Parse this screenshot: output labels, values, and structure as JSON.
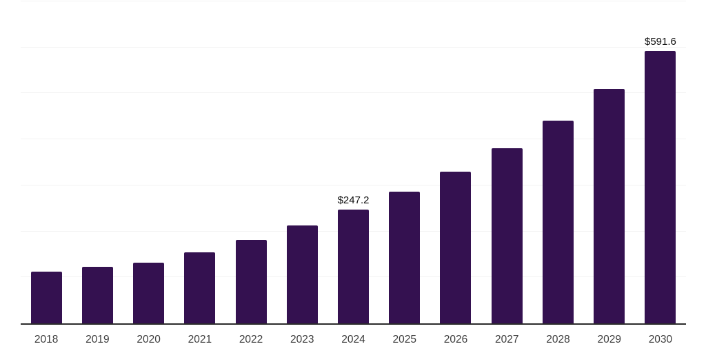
{
  "chart_data": {
    "type": "bar",
    "title": "",
    "xlabel": "",
    "ylabel": "",
    "categories": [
      "2018",
      "2019",
      "2020",
      "2021",
      "2022",
      "2023",
      "2024",
      "2025",
      "2026",
      "2027",
      "2028",
      "2029",
      "2030"
    ],
    "values": [
      112.5,
      122.4,
      131.3,
      153.7,
      181.0,
      212.9,
      247.2,
      285.8,
      330.4,
      380.6,
      440.1,
      509.9,
      591.6
    ],
    "data_labels": {
      "2024": "$247.2",
      "2030": "$591.6"
    },
    "ylim": [
      0,
      700
    ],
    "gridline_step": 100,
    "grid": "horizontal-only",
    "legend": "none",
    "y_axis_tick_labels_visible": false,
    "colors": {
      "bar": "#341150",
      "axis_line": "#2b2b2b",
      "gridline": "#f2f2f2",
      "tick_label": "#3d3d3d",
      "data_label": "#0d0d0d",
      "background": "#ffffff"
    }
  }
}
